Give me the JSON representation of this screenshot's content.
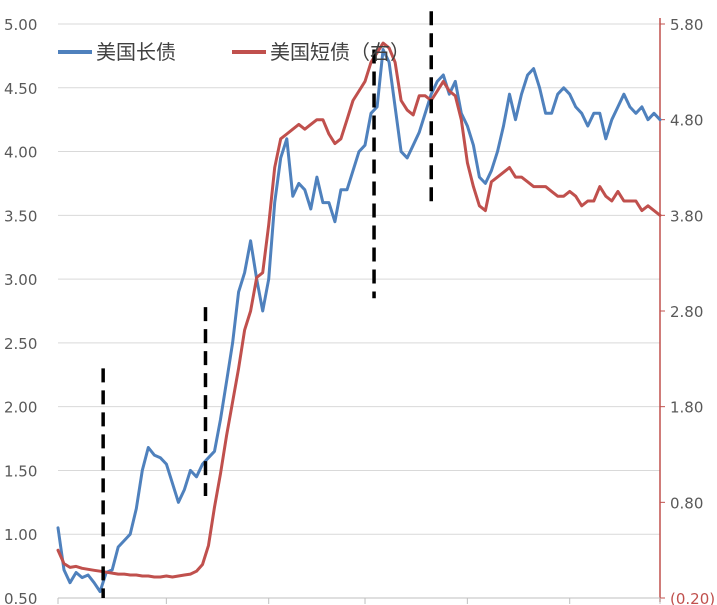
{
  "chart_data": {
    "type": "line",
    "title": "",
    "grid": "horizontal",
    "legend_position": "top-left",
    "left_axis": {
      "ylim": [
        0.5,
        5.0
      ],
      "ticks": [
        "5.00",
        "4.50",
        "4.00",
        "3.50",
        "3.00",
        "2.50",
        "2.00",
        "1.50",
        "1.00",
        "0.50"
      ]
    },
    "right_axis": {
      "ylim": [
        -0.2,
        5.8
      ],
      "ticks": [
        "5.80",
        "4.80",
        "3.80",
        "2.80",
        "1.80",
        "0.80",
        "(0.20)"
      ],
      "negative_tick_color": "#c0504d"
    },
    "x_range": [
      0,
      100
    ],
    "x_tick_positions": [
      0,
      18,
      35,
      51,
      68,
      85,
      100
    ],
    "series": [
      {
        "name": "美国长债",
        "axis": "left",
        "color": "#4f81bd",
        "x": [
          0,
          1,
          2,
          3,
          4,
          5,
          6,
          7,
          8,
          9,
          10,
          11,
          12,
          13,
          14,
          15,
          16,
          17,
          18,
          19,
          20,
          21,
          22,
          23,
          24,
          25,
          26,
          27,
          28,
          29,
          30,
          31,
          32,
          33,
          34,
          35,
          36,
          37,
          38,
          39,
          40,
          41,
          42,
          43,
          44,
          45,
          46,
          47,
          48,
          49,
          50,
          51,
          52,
          53,
          54,
          55,
          56,
          57,
          58,
          59,
          60,
          61,
          62,
          63,
          64,
          65,
          66,
          67,
          68,
          69,
          70,
          71,
          72,
          73,
          74,
          75,
          76,
          77,
          78,
          79,
          80,
          81,
          82,
          83,
          84,
          85,
          86,
          87,
          88,
          89,
          90,
          91,
          92,
          93,
          94,
          95,
          96,
          97,
          98,
          99,
          100
        ],
        "values": [
          1.05,
          0.72,
          0.62,
          0.7,
          0.66,
          0.68,
          0.62,
          0.55,
          0.7,
          0.72,
          0.9,
          0.95,
          1.0,
          1.2,
          1.5,
          1.68,
          1.62,
          1.6,
          1.55,
          1.4,
          1.25,
          1.35,
          1.5,
          1.45,
          1.55,
          1.6,
          1.65,
          1.9,
          2.2,
          2.5,
          2.9,
          3.05,
          3.3,
          3.0,
          2.75,
          3.0,
          3.6,
          3.95,
          4.1,
          3.65,
          3.75,
          3.7,
          3.55,
          3.8,
          3.6,
          3.6,
          3.45,
          3.7,
          3.7,
          3.85,
          4.0,
          4.05,
          4.3,
          4.35,
          4.8,
          4.7,
          4.35,
          4.0,
          3.95,
          4.05,
          4.15,
          4.3,
          4.45,
          4.55,
          4.6,
          4.45,
          4.55,
          4.3,
          4.2,
          4.05,
          3.8,
          3.75,
          3.85,
          4.0,
          4.2,
          4.45,
          4.25,
          4.45,
          4.6,
          4.65,
          4.5,
          4.3,
          4.3,
          4.45,
          4.5,
          4.45,
          4.35,
          4.3,
          4.2,
          4.3,
          4.3,
          4.1,
          4.25,
          4.35,
          4.45,
          4.35,
          4.3,
          4.35,
          4.25,
          4.3,
          4.25
        ]
      },
      {
        "name": "美国短债（右）",
        "axis": "right",
        "color": "#c0504d",
        "x": [
          0,
          1,
          2,
          3,
          4,
          5,
          6,
          7,
          8,
          9,
          10,
          11,
          12,
          13,
          14,
          15,
          16,
          17,
          18,
          19,
          20,
          21,
          22,
          23,
          24,
          25,
          26,
          27,
          28,
          29,
          30,
          31,
          32,
          33,
          34,
          35,
          36,
          37,
          38,
          39,
          40,
          41,
          42,
          43,
          44,
          45,
          46,
          47,
          48,
          49,
          50,
          51,
          52,
          53,
          54,
          55,
          56,
          57,
          58,
          59,
          60,
          61,
          62,
          63,
          64,
          65,
          66,
          67,
          68,
          69,
          70,
          71,
          72,
          73,
          74,
          75,
          76,
          77,
          78,
          79,
          80,
          81,
          82,
          83,
          84,
          85,
          86,
          87,
          88,
          89,
          90,
          91,
          92,
          93,
          94,
          95,
          96,
          97,
          98,
          99,
          100
        ],
        "values": [
          0.3,
          0.16,
          0.12,
          0.13,
          0.11,
          0.1,
          0.09,
          0.08,
          0.07,
          0.06,
          0.05,
          0.05,
          0.04,
          0.04,
          0.03,
          0.03,
          0.02,
          0.02,
          0.03,
          0.02,
          0.03,
          0.04,
          0.05,
          0.08,
          0.15,
          0.35,
          0.75,
          1.1,
          1.5,
          1.85,
          2.2,
          2.6,
          2.8,
          3.15,
          3.2,
          3.7,
          4.3,
          4.6,
          4.65,
          4.7,
          4.75,
          4.7,
          4.75,
          4.8,
          4.8,
          4.65,
          4.55,
          4.6,
          4.8,
          5.0,
          5.1,
          5.2,
          5.4,
          5.5,
          5.6,
          5.55,
          5.4,
          5.0,
          4.9,
          4.85,
          5.05,
          5.05,
          5.0,
          5.1,
          5.2,
          5.1,
          5.05,
          4.8,
          4.35,
          4.1,
          3.9,
          3.85,
          4.15,
          4.2,
          4.25,
          4.3,
          4.2,
          4.2,
          4.15,
          4.1,
          4.1,
          4.1,
          4.05,
          4.0,
          4.0,
          4.05,
          4.0,
          3.9,
          3.95,
          3.95,
          4.1,
          4.0,
          3.95,
          4.05,
          3.95,
          3.95,
          3.95,
          3.85,
          3.9,
          3.85,
          3.8
        ]
      }
    ],
    "markers": [
      {
        "style": "dashed-vertical",
        "color": "#000000",
        "x": 7.5,
        "y_from": 0.5,
        "y_to": 2.3
      },
      {
        "style": "dashed-vertical",
        "color": "#000000",
        "x": 24.5,
        "y_from": 1.3,
        "y_to": 2.78
      },
      {
        "style": "dashed-vertical",
        "color": "#000000",
        "x": 52.5,
        "y_from": 2.85,
        "y_to": 4.8
      },
      {
        "style": "dashed-vertical",
        "color": "#000000",
        "x": 62.0,
        "y_from": 3.6,
        "y_to": 5.1
      }
    ],
    "axis_color": "#c0504d"
  }
}
